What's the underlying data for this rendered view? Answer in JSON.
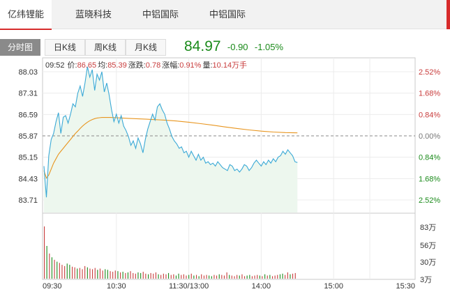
{
  "stock_tabs": [
    {
      "label": "亿纬锂能",
      "active": true
    },
    {
      "label": "蓝晓科技",
      "active": false
    },
    {
      "label": "中铝国际",
      "active": false
    },
    {
      "label": "中铝国际",
      "active": false
    }
  ],
  "period_tabs": [
    {
      "label": "分时图",
      "active": true
    },
    {
      "label": "日K线",
      "active": false
    },
    {
      "label": "周K线",
      "active": false
    },
    {
      "label": "月K线",
      "active": false
    }
  ],
  "quote": {
    "price": "84.97",
    "change": "-0.90",
    "change_pct": "-1.05%"
  },
  "info": {
    "time": "09:52",
    "price_label": "价:",
    "price": "86.65",
    "avg_label": "均:",
    "avg": "85.39",
    "change_label": "涨跌:",
    "change": "0.78",
    "pct_label": "涨幅:",
    "pct": "0.91%",
    "vol_label": "量:",
    "vol": "10.14万手"
  },
  "colors": {
    "price_line": "#3aa9d6",
    "avg_line": "#e8951e",
    "up": "#c83c3c",
    "down": "#1a8a1a",
    "fill": "#edf7ee"
  },
  "chart_data": {
    "type": "line",
    "title": "",
    "xlabel": "",
    "ylabel": "",
    "prev_close": 85.87,
    "ylim": [
      83.35,
      88.39
    ],
    "y_ticks": [
      88.03,
      87.31,
      86.59,
      85.87,
      85.15,
      84.43,
      83.71
    ],
    "pct_ticks": [
      "2.52%",
      "1.68%",
      "0.84%",
      "0.00%",
      "0.84%",
      "1.68%",
      "2.52%"
    ],
    "x_ticks": [
      "09:30",
      "10:30",
      "11:30/13:00",
      "14:00",
      "15:00",
      "15:30"
    ],
    "grid": true,
    "series": [
      {
        "kind": "price",
        "x": [
          0,
          2,
          4,
          6,
          8,
          10,
          12,
          14,
          16,
          18,
          20,
          22,
          24,
          26,
          28,
          30,
          32,
          34,
          36,
          38,
          40,
          42,
          44,
          46,
          48,
          50,
          52,
          54,
          56,
          58,
          60,
          62,
          64,
          66,
          68,
          70,
          72,
          74,
          76,
          78,
          80,
          82,
          84,
          86,
          88,
          90,
          92,
          94,
          96,
          98,
          100,
          102,
          104,
          106,
          108,
          110,
          112,
          114,
          116,
          118,
          120,
          122,
          124,
          126,
          128,
          130,
          132,
          134,
          136,
          138,
          140,
          142,
          144,
          146,
          148,
          150,
          152,
          154,
          156,
          158,
          160,
          162,
          164,
          166,
          168,
          170,
          172,
          174,
          176,
          178,
          180,
          182,
          184,
          186,
          188,
          190,
          192,
          194,
          196,
          198,
          200,
          202,
          204,
          206,
          208,
          210
        ],
        "values": [
          84.85,
          83.8,
          85.2,
          85.75,
          85.95,
          86.35,
          86.65,
          85.95,
          86.5,
          86.55,
          86.3,
          86.6,
          86.95,
          86.85,
          87.3,
          87.55,
          87.2,
          87.65,
          88.2,
          87.85,
          88.1,
          87.4,
          87.95,
          87.75,
          88.03,
          87.35,
          87.65,
          87.25,
          86.75,
          86.35,
          86.6,
          86.3,
          86.55,
          86.2,
          86.05,
          85.85,
          85.55,
          85.7,
          85.45,
          85.8,
          85.6,
          85.3,
          85.75,
          86.1,
          86.35,
          86.6,
          86.4,
          86.85,
          86.95,
          86.75,
          86.6,
          86.3,
          86.1,
          85.85,
          85.7,
          85.6,
          85.45,
          85.5,
          85.3,
          85.35,
          85.15,
          85.35,
          85.2,
          85.05,
          85.25,
          85.05,
          85.15,
          84.95,
          85.0,
          84.9,
          84.95,
          84.85,
          85.0,
          84.9,
          84.8,
          84.75,
          84.7,
          84.9,
          84.85,
          84.7,
          84.75,
          84.65,
          84.75,
          84.9,
          84.85,
          84.7,
          84.8,
          84.95,
          85.05,
          84.95,
          84.85,
          85.0,
          84.9,
          85.05,
          84.95,
          85.1,
          85.0,
          85.15,
          85.2,
          85.35,
          85.25,
          85.4,
          85.3,
          85.2,
          85.0,
          84.97
        ]
      },
      {
        "kind": "average",
        "x": [
          0,
          2,
          4,
          6,
          8,
          10,
          12,
          14,
          16,
          18,
          20,
          22,
          24,
          26,
          28,
          30,
          32,
          34,
          36,
          38,
          40,
          42,
          44,
          46,
          48,
          50,
          55,
          60,
          65,
          70,
          75,
          80,
          85,
          90,
          95,
          100,
          110,
          120,
          130,
          140,
          150,
          160,
          170,
          180,
          190,
          200,
          210
        ],
        "values": [
          84.7,
          84.45,
          84.55,
          84.75,
          84.95,
          85.1,
          85.25,
          85.35,
          85.45,
          85.55,
          85.65,
          85.75,
          85.85,
          85.95,
          86.03,
          86.12,
          86.2,
          86.27,
          86.33,
          86.38,
          86.42,
          86.45,
          86.47,
          86.48,
          86.49,
          86.49,
          86.49,
          86.48,
          86.47,
          86.46,
          86.45,
          86.44,
          86.43,
          86.42,
          86.41,
          86.4,
          86.37,
          86.33,
          86.28,
          86.23,
          86.17,
          86.12,
          86.07,
          86.03,
          86.0,
          85.98,
          85.97
        ]
      }
    ],
    "volume": {
      "unit": "万",
      "y_ticks": [
        "83万",
        "56万",
        "30万",
        "3万"
      ],
      "ylim": [
        3,
        83
      ],
      "values": [
        83,
        52,
        40,
        34,
        30,
        27,
        25,
        22,
        20,
        24,
        22,
        19,
        18,
        16,
        17,
        15,
        20,
        18,
        16,
        15,
        17,
        14,
        16,
        13,
        15,
        14,
        12,
        11,
        13,
        12,
        10,
        11,
        9,
        10,
        12,
        9,
        8,
        10,
        9,
        11,
        8,
        7,
        9,
        8,
        10,
        7,
        6,
        8,
        7,
        9,
        6,
        7,
        5,
        8,
        6,
        7,
        5,
        6,
        8,
        5,
        6,
        4,
        7,
        5,
        6,
        5,
        4,
        6,
        5,
        7,
        6,
        5,
        10,
        6,
        5,
        4,
        6,
        5,
        7,
        4,
        5,
        6,
        4,
        5,
        6,
        5,
        4,
        7,
        5,
        6,
        4,
        5,
        6,
        7,
        8,
        6,
        10,
        7,
        8,
        9
      ]
    }
  }
}
